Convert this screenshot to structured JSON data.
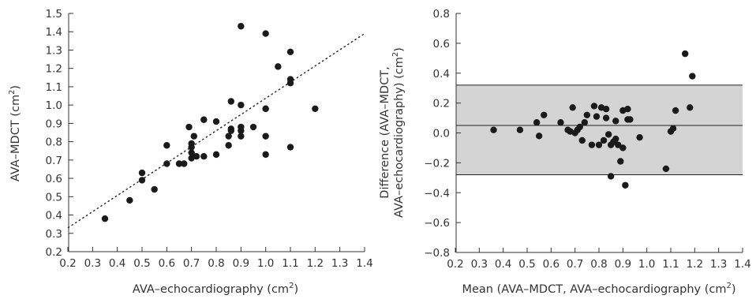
{
  "chart_data": [
    {
      "type": "scatter",
      "title": "",
      "xlabel": "AVA–echocardiography (cm",
      "xlabel_sup": "2",
      "xlabel_end": ")",
      "ylabel": "AVA–MDCT (cm",
      "ylabel_sup": "2",
      "ylabel_end": ")",
      "xlim": [
        0.2,
        1.4
      ],
      "ylim": [
        0.2,
        1.5
      ],
      "xticks": [
        "0.2",
        "0.3",
        "0.4",
        "0.5",
        "0.6",
        "0.7",
        "0.8",
        "0.9",
        "1.0",
        "1.1",
        "1.2",
        "1.3",
        "1.4"
      ],
      "yticks": [
        "0.2",
        "0.3",
        "0.4",
        "0.5",
        "0.6",
        "0.7",
        "0.8",
        "0.9",
        "1.0",
        "1.1",
        "1.2",
        "1.3",
        "1.4",
        "1.5"
      ],
      "regression_line": {
        "x": [
          0.2,
          1.4
        ],
        "y": [
          0.33,
          1.39
        ],
        "style": "dotted"
      },
      "grid": false,
      "series": [
        {
          "x": [
            0.35,
            0.45,
            0.5,
            0.5,
            0.55,
            0.6,
            0.6,
            0.65,
            0.67,
            0.69,
            0.7,
            0.7,
            0.7,
            0.7,
            0.71,
            0.72,
            0.75,
            0.75,
            0.8,
            0.8,
            0.85,
            0.85,
            0.86,
            0.86,
            0.86,
            0.9,
            0.9,
            0.9,
            0.9,
            0.9,
            0.95,
            1.0,
            1.0,
            1.0,
            1.0,
            1.0,
            1.05,
            1.1,
            1.1,
            1.1,
            1.1,
            1.2
          ],
          "y": [
            0.38,
            0.48,
            0.59,
            0.63,
            0.54,
            0.68,
            0.78,
            0.68,
            0.68,
            0.88,
            0.71,
            0.74,
            0.77,
            0.79,
            0.83,
            0.72,
            0.72,
            0.92,
            0.73,
            0.91,
            0.78,
            0.83,
            0.86,
            0.87,
            1.02,
            0.83,
            0.86,
            0.88,
            1.0,
            1.43,
            0.88,
            0.73,
            0.83,
            0.98,
            0.98,
            1.39,
            1.21,
            0.77,
            1.12,
            1.14,
            1.29,
            0.98
          ]
        }
      ]
    },
    {
      "type": "scatter",
      "title": "",
      "xlabel": "Mean (AVA–MDCT, AVA–echocardiography (cm",
      "xlabel_sup": "2",
      "xlabel_end": ")",
      "ylabel_line1": "Difference (AVA–MDCT,",
      "ylabel_line2": "AVA–echocardiography) (cm",
      "ylabel_sup": "2",
      "ylabel_end": ")",
      "xlim": [
        0.2,
        1.4
      ],
      "ylim": [
        -0.8,
        0.8
      ],
      "xticks": [
        "0.2",
        "0.3",
        "0.4",
        "0.5",
        "0.6",
        "0.7",
        "0.8",
        "0.9",
        "1.0",
        "1.1",
        "1.2",
        "1.3",
        "1.4"
      ],
      "yticks": [
        "0.8",
        "0.6",
        "0.4",
        "0.2",
        "0.0",
        "−0.2",
        "−0.4",
        "−0.6",
        "−0.8"
      ],
      "yticks_values": [
        0.8,
        0.6,
        0.4,
        0.2,
        0.0,
        -0.2,
        -0.4,
        -0.6,
        -0.8
      ],
      "mean_difference": 0.05,
      "limits_of_agreement": [
        -0.28,
        0.32
      ],
      "band_color": "#d4d4d4",
      "grid": false,
      "series": [
        {
          "x": [
            0.36,
            0.47,
            0.54,
            0.55,
            0.57,
            0.64,
            0.67,
            0.68,
            0.69,
            0.7,
            0.71,
            0.72,
            0.73,
            0.74,
            0.75,
            0.77,
            0.78,
            0.79,
            0.8,
            0.81,
            0.82,
            0.83,
            0.83,
            0.84,
            0.85,
            0.85,
            0.86,
            0.87,
            0.87,
            0.88,
            0.89,
            0.9,
            0.9,
            0.91,
            0.92,
            0.92,
            0.93,
            0.97,
            1.08,
            1.1,
            1.11,
            1.12,
            1.16,
            1.18,
            1.19
          ],
          "y": [
            0.02,
            0.02,
            0.07,
            -0.02,
            0.12,
            0.07,
            0.02,
            0.01,
            0.17,
            0.0,
            0.02,
            0.04,
            -0.05,
            0.07,
            0.12,
            -0.08,
            0.18,
            0.11,
            -0.08,
            0.17,
            -0.05,
            0.16,
            0.1,
            -0.01,
            -0.08,
            -0.29,
            -0.06,
            -0.04,
            0.08,
            -0.08,
            -0.19,
            -0.1,
            0.15,
            -0.35,
            0.16,
            0.09,
            0.09,
            -0.03,
            -0.24,
            0.01,
            0.03,
            0.15,
            0.53,
            0.17,
            0.38
          ]
        }
      ]
    }
  ]
}
